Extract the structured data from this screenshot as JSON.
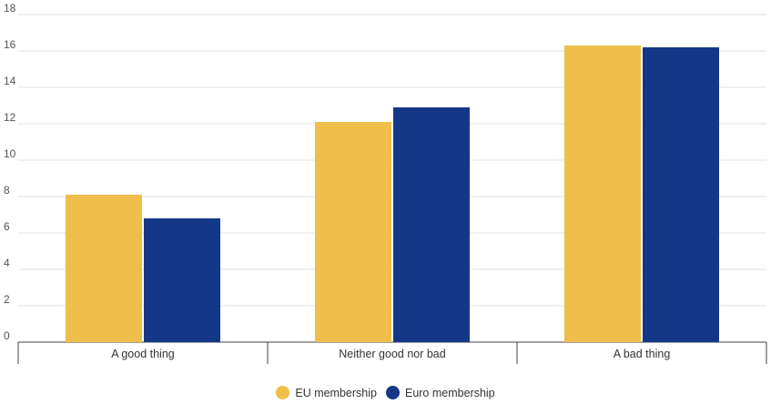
{
  "chart_data": {
    "type": "bar",
    "title": "",
    "xlabel": "",
    "ylabel": "",
    "categories": [
      "A good thing",
      "Neither good nor bad",
      "A bad thing"
    ],
    "series": [
      {
        "name": "EU membership",
        "color": "#f0be4b",
        "values": [
          8.1,
          12.1,
          16.3
        ]
      },
      {
        "name": "Euro membership",
        "color": "#143888",
        "values": [
          6.8,
          12.9,
          16.2
        ]
      }
    ],
    "ylim": [
      0,
      18
    ],
    "yticks": [
      0,
      2,
      4,
      6,
      8,
      10,
      12,
      14,
      16,
      18
    ],
    "grid": true,
    "legend_position": "bottom-center"
  }
}
